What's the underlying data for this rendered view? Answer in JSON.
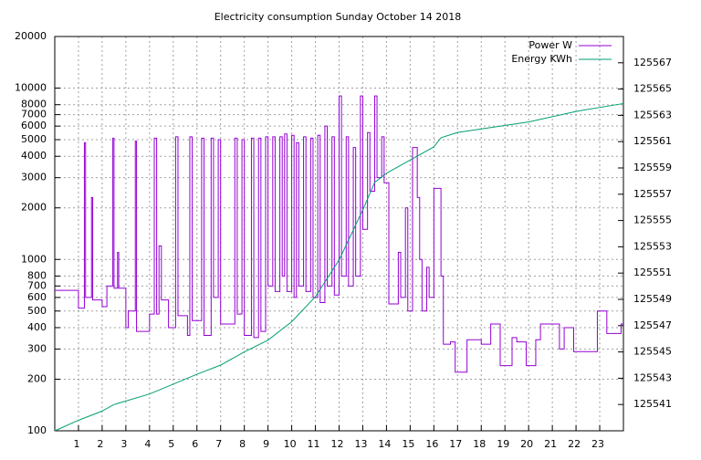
{
  "chart_data": {
    "type": "line",
    "title": "Electricity consumption Sunday October 14 2018",
    "log_y": true,
    "grid": true,
    "steps": true,
    "legend": "top-right",
    "xlim": [
      0,
      24
    ],
    "xticks": [
      1,
      2,
      3,
      4,
      5,
      6,
      7,
      8,
      9,
      10,
      11,
      12,
      13,
      14,
      15,
      16,
      17,
      18,
      19,
      20,
      21,
      22,
      23
    ],
    "ylim": [
      100,
      20000
    ],
    "yticks": [
      100,
      200,
      300,
      400,
      500,
      600,
      700,
      800,
      1000,
      2000,
      3000,
      4000,
      5000,
      6000,
      7000,
      8000,
      10000,
      20000
    ],
    "y2lim": [
      125539,
      125569
    ],
    "y2ticks": [
      125541,
      125543,
      125545,
      125547,
      125549,
      125551,
      125553,
      125555,
      125557,
      125559,
      125561,
      125563,
      125565,
      125567
    ],
    "series": [
      {
        "name": "Power W",
        "color": "#9400d3",
        "x": [
          0,
          1.0,
          1.25,
          1.3,
          1.55,
          1.6,
          2.0,
          2.2,
          2.45,
          2.5,
          2.65,
          2.7,
          3.0,
          3.1,
          3.4,
          3.45,
          4.0,
          4.2,
          4.3,
          4.4,
          4.5,
          4.8,
          5.1,
          5.2,
          5.6,
          5.7,
          5.8,
          6.2,
          6.3,
          6.6,
          6.7,
          6.9,
          7.0,
          7.6,
          7.7,
          7.9,
          8.0,
          8.3,
          8.4,
          8.6,
          8.7,
          8.9,
          9.0,
          9.2,
          9.3,
          9.5,
          9.6,
          9.7,
          9.8,
          10.0,
          10.1,
          10.2,
          10.3,
          10.5,
          10.6,
          10.8,
          10.9,
          11.1,
          11.2,
          11.4,
          11.5,
          11.7,
          11.8,
          12.0,
          12.1,
          12.3,
          12.4,
          12.6,
          12.7,
          12.9,
          13.0,
          13.2,
          13.3,
          13.5,
          13.6,
          13.8,
          13.9,
          14.1,
          14.5,
          14.6,
          14.8,
          14.9,
          15.1,
          15.3,
          15.4,
          15.5,
          15.7,
          15.8,
          16.0,
          16.3,
          16.4,
          16.7,
          16.9,
          17.4,
          18.0,
          18.4,
          18.8,
          19.3,
          19.5,
          19.9,
          20.3,
          20.5,
          21.3,
          21.5,
          21.9,
          22.9,
          23.3,
          23.9
        ],
        "values": [
          660,
          520,
          4800,
          600,
          2300,
          580,
          530,
          700,
          5100,
          680,
          1100,
          680,
          400,
          500,
          4900,
          380,
          480,
          5100,
          480,
          1200,
          580,
          400,
          5200,
          470,
          360,
          5200,
          440,
          5100,
          360,
          5100,
          600,
          5000,
          420,
          5100,
          480,
          5000,
          360,
          5100,
          350,
          5100,
          380,
          5200,
          700,
          5200,
          650,
          5200,
          800,
          5400,
          650,
          5300,
          600,
          4800,
          700,
          5200,
          650,
          5100,
          600,
          5300,
          560,
          6000,
          700,
          5200,
          620,
          9000,
          800,
          5200,
          700,
          4500,
          800,
          9000,
          1500,
          5500,
          2500,
          9000,
          3000,
          5200,
          2800,
          550,
          1100,
          600,
          2000,
          500,
          4500,
          2300,
          1000,
          500,
          900,
          600,
          2600,
          800,
          320,
          330,
          220,
          340,
          320,
          420,
          240,
          350,
          330,
          240,
          340,
          420,
          300,
          400,
          290,
          500,
          370,
          420
        ]
      },
      {
        "name": "Energy KWh",
        "color": "#009e73",
        "axis": "y2",
        "x": [
          0,
          1,
          2,
          2.5,
          4,
          6,
          7,
          8,
          9,
          10,
          11,
          12,
          13,
          13.5,
          14,
          15,
          16,
          16.3,
          17,
          20,
          22,
          24
        ],
        "values": [
          125539,
          125539.8,
          125540.5,
          125541,
          125541.8,
          125543.3,
          125544,
          125545,
          125545.9,
          125547.3,
          125549.2,
          125552,
          125555.8,
          125557.9,
          125558.6,
          125559.6,
          125560.6,
          125561.3,
          125561.7,
          125562.5,
          125563.3,
          125563.9
        ]
      }
    ]
  }
}
